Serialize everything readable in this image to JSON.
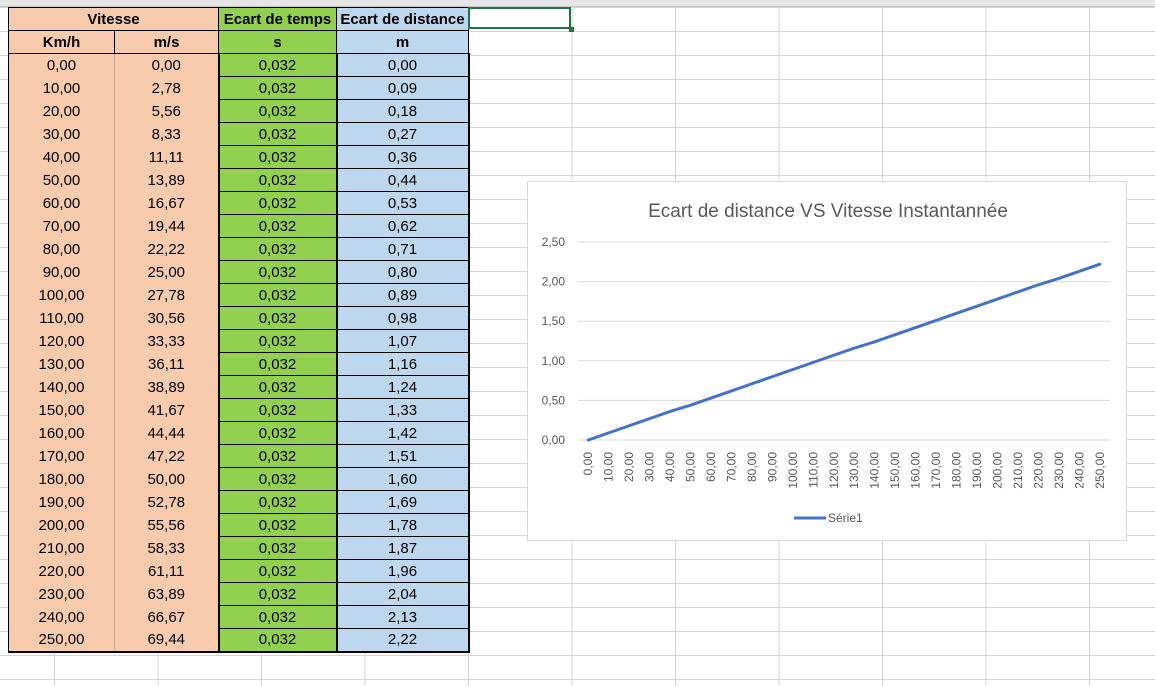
{
  "sheet": {
    "header1": {
      "vitesse": "Vitesse",
      "ecart_temps": "Ecart de temps",
      "ecart_distance": "Ecart de distance"
    },
    "header2": {
      "kmh": "Km/h",
      "ms": "m/s",
      "s": "s",
      "m": "m"
    },
    "rows": [
      [
        "0,00",
        "0,00",
        "0,032",
        "0,00"
      ],
      [
        "10,00",
        "2,78",
        "0,032",
        "0,09"
      ],
      [
        "20,00",
        "5,56",
        "0,032",
        "0,18"
      ],
      [
        "30,00",
        "8,33",
        "0,032",
        "0,27"
      ],
      [
        "40,00",
        "11,11",
        "0,032",
        "0,36"
      ],
      [
        "50,00",
        "13,89",
        "0,032",
        "0,44"
      ],
      [
        "60,00",
        "16,67",
        "0,032",
        "0,53"
      ],
      [
        "70,00",
        "19,44",
        "0,032",
        "0,62"
      ],
      [
        "80,00",
        "22,22",
        "0,032",
        "0,71"
      ],
      [
        "90,00",
        "25,00",
        "0,032",
        "0,80"
      ],
      [
        "100,00",
        "27,78",
        "0,032",
        "0,89"
      ],
      [
        "110,00",
        "30,56",
        "0,032",
        "0,98"
      ],
      [
        "120,00",
        "33,33",
        "0,032",
        "1,07"
      ],
      [
        "130,00",
        "36,11",
        "0,032",
        "1,16"
      ],
      [
        "140,00",
        "38,89",
        "0,032",
        "1,24"
      ],
      [
        "150,00",
        "41,67",
        "0,032",
        "1,33"
      ],
      [
        "160,00",
        "44,44",
        "0,032",
        "1,42"
      ],
      [
        "170,00",
        "47,22",
        "0,032",
        "1,51"
      ],
      [
        "180,00",
        "50,00",
        "0,032",
        "1,60"
      ],
      [
        "190,00",
        "52,78",
        "0,032",
        "1,69"
      ],
      [
        "200,00",
        "55,56",
        "0,032",
        "1,78"
      ],
      [
        "210,00",
        "58,33",
        "0,032",
        "1,87"
      ],
      [
        "220,00",
        "61,11",
        "0,032",
        "1,96"
      ],
      [
        "230,00",
        "63,89",
        "0,032",
        "2,04"
      ],
      [
        "240,00",
        "66,67",
        "0,032",
        "2,13"
      ],
      [
        "250,00",
        "69,44",
        "0,032",
        "2,22"
      ]
    ]
  },
  "colors": {
    "vitesse_fill": "#f8cbad",
    "temps_fill": "#92d050",
    "distance_fill": "#bdd7ee",
    "series_line": "#4472c4",
    "selection": "#217346"
  },
  "chart_data": {
    "type": "line",
    "title": "Ecart de distance VS Vitesse Instantannée",
    "categories": [
      "0,00",
      "10,00",
      "20,00",
      "30,00",
      "40,00",
      "50,00",
      "60,00",
      "70,00",
      "80,00",
      "90,00",
      "100,00",
      "110,00",
      "120,00",
      "130,00",
      "140,00",
      "150,00",
      "160,00",
      "170,00",
      "180,00",
      "190,00",
      "200,00",
      "210,00",
      "220,00",
      "230,00",
      "240,00",
      "250,00"
    ],
    "series": [
      {
        "name": "Série1",
        "values": [
          0.0,
          0.09,
          0.18,
          0.27,
          0.36,
          0.44,
          0.53,
          0.62,
          0.71,
          0.8,
          0.89,
          0.98,
          1.07,
          1.16,
          1.24,
          1.33,
          1.42,
          1.51,
          1.6,
          1.69,
          1.78,
          1.87,
          1.96,
          2.04,
          2.13,
          2.22
        ]
      }
    ],
    "y_ticks": [
      "0,00",
      "0,50",
      "1,00",
      "1,50",
      "2,00",
      "2,50"
    ],
    "ylim": [
      0,
      2.5
    ],
    "xlabel": "",
    "ylabel": "",
    "grid": true,
    "legend": "bottom"
  }
}
